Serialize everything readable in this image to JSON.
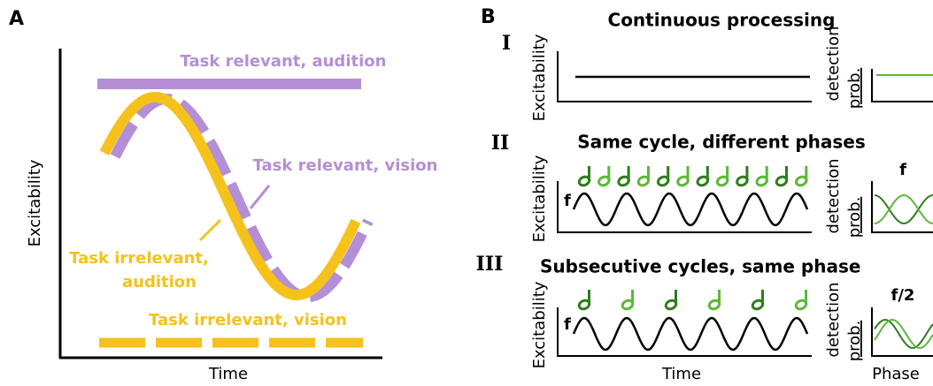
{
  "panel_a": {
    "label": "A",
    "y_axis": "Excitability",
    "x_axis": "Time",
    "relevant_audition": "Task relevant, audition",
    "relevant_vision": "Task relevant, vision",
    "irrelevant_audition": [
      "Task irrelevant,",
      "audition"
    ],
    "irrelevant_vision": "Task irrelevant, vision"
  },
  "panel_b": {
    "label": "B",
    "x_axis": "Time",
    "right_x_axis": "Phase",
    "rows": [
      {
        "numeral": "I",
        "title": "Continuous processing",
        "y_axis": "Excitability",
        "right_y_axis": [
          "detection",
          "prob."
        ]
      },
      {
        "numeral": "II",
        "title": "Same cycle, different phases",
        "y_axis": "Excitability",
        "right_y_axis": [
          "detection",
          "prob."
        ],
        "freq_label": "f",
        "right_title": "f"
      },
      {
        "numeral": "III",
        "title": "Subsecutive cycles, same phase",
        "y_axis": "Excitability",
        "right_y_axis": [
          "detection",
          "prob."
        ],
        "freq_label": "f",
        "right_title": "f/2"
      }
    ]
  }
}
